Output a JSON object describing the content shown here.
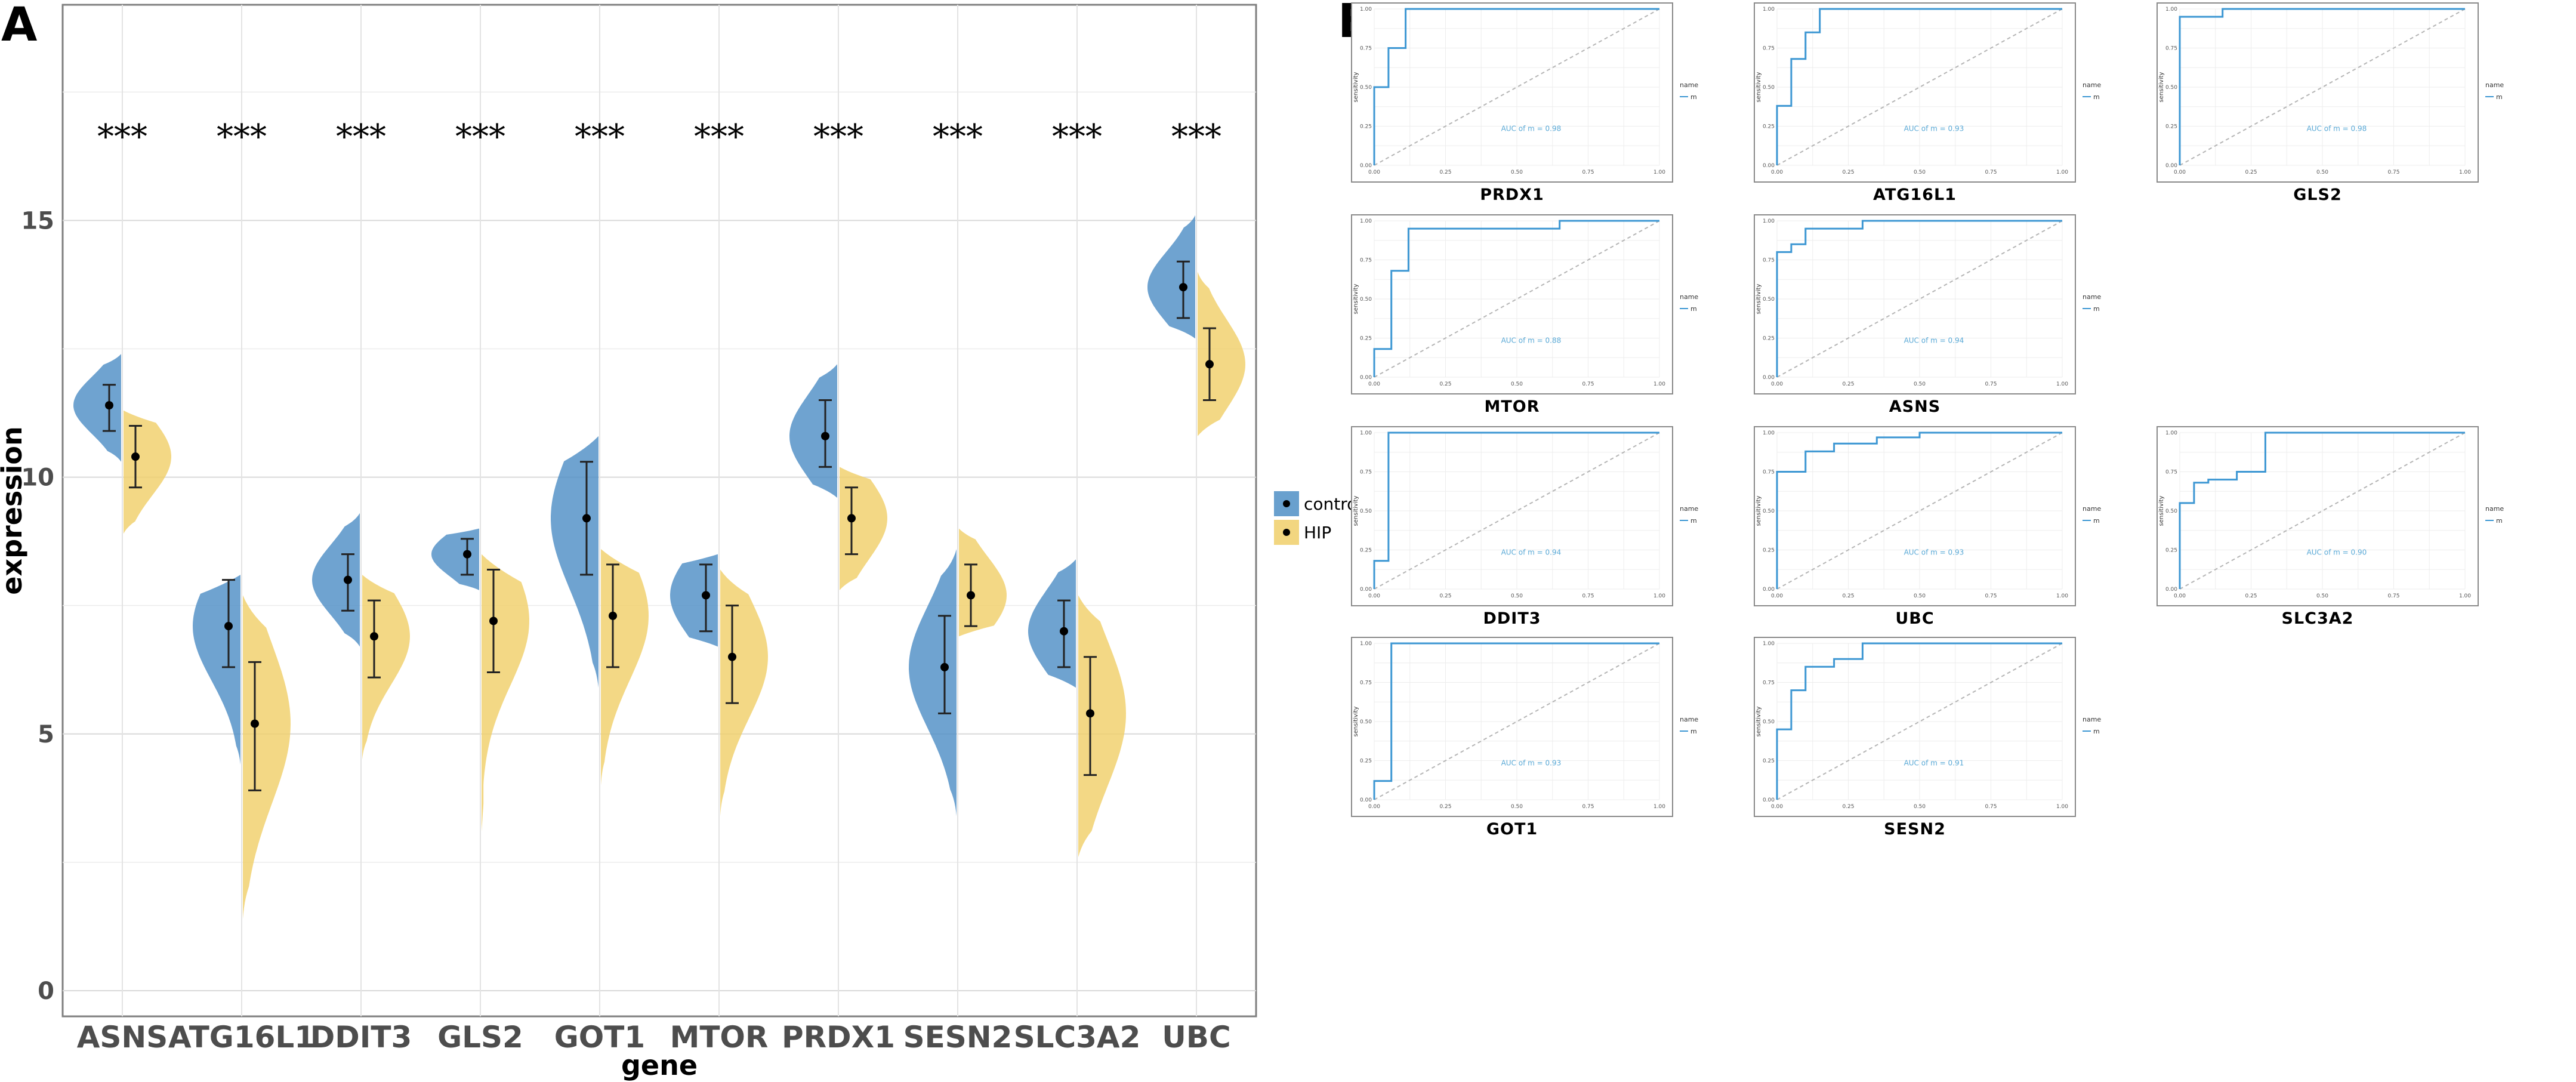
{
  "panels": {
    "a_label": "A",
    "b_label": "B"
  },
  "chart_data": [
    {
      "type": "violin",
      "panel": "A",
      "xlabel": "gene",
      "ylabel": "expression",
      "ylim": [
        -0.5,
        19.2
      ],
      "yticks": [
        0,
        5,
        10,
        15
      ],
      "significance": "***",
      "legend": {
        "position": "right",
        "entries": [
          {
            "name": "control",
            "color": "#4f8fc6"
          },
          {
            "name": "HIP",
            "color": "#f0cf6a"
          }
        ]
      },
      "categories": [
        "ASNS",
        "ATG16L1",
        "DDIT3",
        "GLS2",
        "GOT1",
        "MTOR",
        "PRDX1",
        "SESN2",
        "SLC3A2",
        "UBC"
      ],
      "series": [
        {
          "name": "control",
          "color": "#4f8fc6",
          "mean": [
            11.4,
            7.1,
            8.0,
            8.5,
            9.2,
            7.7,
            10.8,
            6.3,
            7.0,
            13.7
          ],
          "err_low": [
            10.9,
            6.3,
            7.4,
            8.1,
            8.1,
            7.0,
            10.2,
            5.4,
            6.3,
            13.1
          ],
          "err_high": [
            11.8,
            8.0,
            8.5,
            8.8,
            10.3,
            8.3,
            11.5,
            7.3,
            7.6,
            14.2
          ],
          "range_low": [
            10.3,
            4.4,
            6.7,
            7.8,
            5.9,
            6.7,
            9.6,
            3.4,
            5.9,
            12.7
          ],
          "range_high": [
            12.4,
            8.1,
            9.3,
            9.0,
            10.8,
            8.5,
            12.2,
            8.6,
            8.4,
            15.1
          ]
        },
        {
          "name": "HIP",
          "color": "#f0cf6a",
          "mean": [
            10.4,
            5.2,
            6.9,
            7.2,
            7.3,
            6.5,
            9.2,
            7.7,
            5.4,
            12.2
          ],
          "err_low": [
            9.8,
            3.9,
            6.1,
            6.2,
            6.3,
            5.6,
            8.5,
            7.1,
            4.2,
            11.5
          ],
          "err_high": [
            11.0,
            6.4,
            7.6,
            8.2,
            8.3,
            7.5,
            9.8,
            8.3,
            6.5,
            12.9
          ],
          "range_low": [
            8.9,
            1.4,
            4.5,
            3.1,
            4.0,
            3.4,
            7.8,
            6.9,
            2.6,
            10.8
          ],
          "range_high": [
            11.3,
            7.7,
            8.1,
            8.5,
            8.6,
            8.2,
            10.2,
            9.0,
            7.7,
            14.0
          ]
        }
      ]
    },
    {
      "type": "line",
      "panel": "B",
      "subtype": "roc-grid",
      "xlabel": "specificity",
      "ylabel": "sensitivity",
      "legend_title": "name",
      "legend_entry": "m",
      "xticks": [
        "0.00",
        "0.25",
        "0.50",
        "0.75",
        "1.00"
      ],
      "yticks": [
        "0.00",
        "0.25",
        "0.50",
        "0.75",
        "1.00"
      ],
      "plots": [
        {
          "gene": "PRDX1",
          "auc_text": "AUC of m = 0.98",
          "fpr": [
            0,
            0,
            0.05,
            0.05,
            0.11,
            0.11,
            1
          ],
          "tpr": [
            0,
            0.5,
            0.5,
            0.75,
            0.75,
            1,
            1
          ]
        },
        {
          "gene": "ATG16L1",
          "auc_text": "AUC of m = 0.93",
          "fpr": [
            0,
            0,
            0.05,
            0.05,
            0.1,
            0.1,
            0.15,
            0.15,
            1
          ],
          "tpr": [
            0,
            0.38,
            0.38,
            0.68,
            0.68,
            0.85,
            0.85,
            1,
            1
          ]
        },
        {
          "gene": "GLS2",
          "auc_text": "AUC of m = 0.98",
          "fpr": [
            0,
            0,
            0.15,
            0.15,
            1
          ],
          "tpr": [
            0,
            0.95,
            0.95,
            1,
            1
          ]
        },
        {
          "gene": "MTOR",
          "auc_text": "AUC of m = 0.88",
          "fpr": [
            0,
            0,
            0.06,
            0.06,
            0.12,
            0.12,
            0.65,
            0.65,
            1
          ],
          "tpr": [
            0,
            0.18,
            0.18,
            0.68,
            0.68,
            0.95,
            0.95,
            1,
            1
          ]
        },
        {
          "gene": "ASNS",
          "auc_text": "AUC of m = 0.94",
          "fpr": [
            0,
            0,
            0.05,
            0.05,
            0.1,
            0.1,
            0.3,
            0.3,
            0.45,
            0.45,
            1
          ],
          "tpr": [
            0,
            0.8,
            0.8,
            0.85,
            0.85,
            0.95,
            0.95,
            1,
            1,
            1,
            1
          ]
        },
        {
          "gene": "DDIT3",
          "auc_text": "AUC of m = 0.94",
          "fpr": [
            0,
            0,
            0.05,
            0.05,
            1
          ],
          "tpr": [
            0,
            0.18,
            0.18,
            1,
            1
          ]
        },
        {
          "gene": "UBC",
          "auc_text": "AUC of m = 0.93",
          "fpr": [
            0,
            0,
            0.1,
            0.1,
            0.2,
            0.2,
            0.35,
            0.35,
            0.5,
            0.5,
            1
          ],
          "tpr": [
            0,
            0.75,
            0.75,
            0.88,
            0.88,
            0.93,
            0.93,
            0.97,
            0.97,
            1,
            1
          ]
        },
        {
          "gene": "SLC3A2",
          "auc_text": "AUC of m = 0.90",
          "fpr": [
            0,
            0,
            0.05,
            0.05,
            0.1,
            0.1,
            0.2,
            0.2,
            0.3,
            0.3,
            1
          ],
          "tpr": [
            0,
            0.55,
            0.55,
            0.68,
            0.68,
            0.7,
            0.7,
            0.75,
            0.75,
            1,
            1
          ]
        },
        {
          "gene": "GOT1",
          "auc_text": "AUC of m = 0.93",
          "fpr": [
            0,
            0,
            0.06,
            0.06,
            1
          ],
          "tpr": [
            0,
            0.12,
            0.12,
            1,
            1
          ]
        },
        {
          "gene": "SESN2",
          "auc_text": "AUC of m = 0.91",
          "fpr": [
            0,
            0,
            0.05,
            0.05,
            0.1,
            0.1,
            0.2,
            0.2,
            0.3,
            0.3,
            1
          ],
          "tpr": [
            0,
            0.45,
            0.45,
            0.7,
            0.7,
            0.85,
            0.85,
            0.9,
            0.9,
            1,
            1
          ]
        }
      ]
    }
  ]
}
